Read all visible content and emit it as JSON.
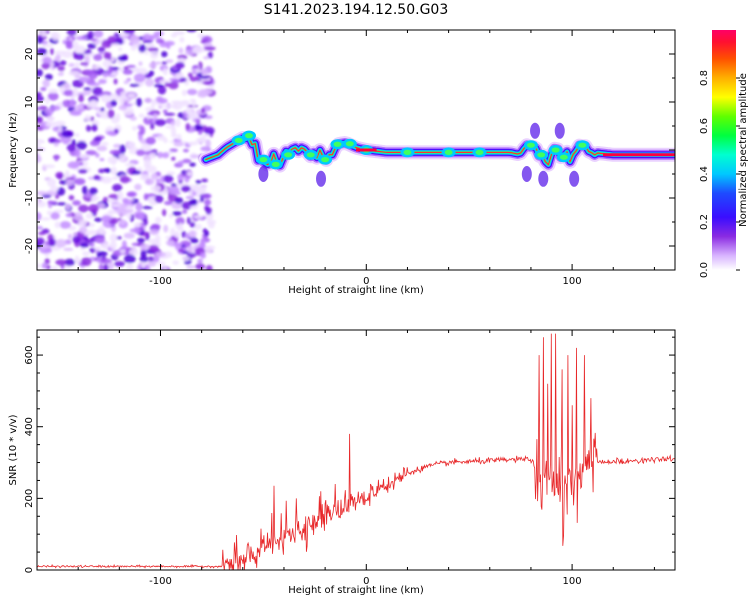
{
  "title": "S141.2023.194.12.50.G03",
  "chart_data": [
    {
      "type": "heatmap",
      "name": "spectrogram",
      "xlabel": "Height of straight line (km)",
      "ylabel": "Frequency (Hz)",
      "xlim": [
        -160,
        150
      ],
      "ylim": [
        -25,
        25
      ],
      "xticks": [
        -100,
        0,
        100
      ],
      "yticks": [
        -20,
        -10,
        0,
        10,
        20
      ],
      "ridge_points": [
        [
          -78,
          -2
        ],
        [
          -72,
          -1
        ],
        [
          -68,
          0.5
        ],
        [
          -62,
          2
        ],
        [
          -58,
          3
        ],
        [
          -55,
          2
        ],
        [
          -52,
          -2
        ],
        [
          -48,
          -3
        ],
        [
          -44,
          -2
        ],
        [
          -40,
          -1
        ],
        [
          -36,
          0
        ],
        [
          -30,
          0
        ],
        [
          -25,
          -1
        ],
        [
          -20,
          -1.5
        ],
        [
          -17,
          -1
        ],
        [
          -14,
          1.2
        ],
        [
          -10,
          1.5
        ],
        [
          -5,
          0.5
        ],
        [
          0,
          0
        ],
        [
          10,
          -0.5
        ],
        [
          20,
          -0.5
        ],
        [
          40,
          -0.5
        ],
        [
          60,
          -0.5
        ],
        [
          70,
          -0.5
        ],
        [
          75,
          -1
        ],
        [
          80,
          1
        ],
        [
          84,
          -1
        ],
        [
          88,
          -2
        ],
        [
          92,
          0
        ],
        [
          96,
          -1
        ],
        [
          100,
          -1
        ],
        [
          105,
          1
        ],
        [
          110,
          -0.5
        ],
        [
          120,
          -1
        ],
        [
          130,
          -1
        ],
        [
          140,
          -1
        ],
        [
          148,
          -1
        ]
      ],
      "colorbar": {
        "label": "Normalized spectral amplitude",
        "ticks": [
          "0.0",
          "0.2",
          "0.4",
          "0.6",
          "0.8"
        ],
        "range": [
          0,
          1
        ]
      }
    },
    {
      "type": "line",
      "name": "snr",
      "xlabel": "Height of straight line (km)",
      "ylabel": "SNR (10 * v/v)",
      "xlim": [
        -160,
        150
      ],
      "ylim": [
        0,
        670
      ],
      "xticks": [
        -100,
        0,
        100
      ],
      "yticks": [
        0,
        200,
        400,
        600
      ],
      "color": "#e8282a",
      "trend": [
        [
          -160,
          10
        ],
        [
          -70,
          10
        ],
        [
          -60,
          25
        ],
        [
          -50,
          60
        ],
        [
          -40,
          90
        ],
        [
          -30,
          110
        ],
        [
          -20,
          150
        ],
        [
          -10,
          180
        ],
        [
          0,
          200
        ],
        [
          10,
          235
        ],
        [
          20,
          270
        ],
        [
          30,
          290
        ],
        [
          40,
          300
        ],
        [
          60,
          305
        ],
        [
          80,
          310
        ],
        [
          84,
          260
        ],
        [
          100,
          240
        ],
        [
          110,
          300
        ],
        [
          150,
          310
        ]
      ],
      "peaks": [
        [
          -45,
          235
        ],
        [
          -34,
          200
        ],
        [
          -22,
          220
        ],
        [
          -15,
          240
        ],
        [
          -8,
          380
        ],
        [
          2,
          240
        ],
        [
          84,
          600
        ],
        [
          86,
          650
        ],
        [
          88,
          520
        ],
        [
          90,
          660
        ],
        [
          92,
          660
        ],
        [
          95,
          560
        ],
        [
          98,
          600
        ],
        [
          100,
          460
        ],
        [
          102,
          620
        ],
        [
          106,
          600
        ],
        [
          109,
          480
        ]
      ]
    }
  ]
}
